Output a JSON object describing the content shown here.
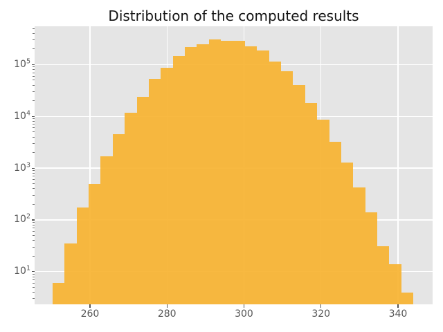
{
  "title": "Distribution of the computed results",
  "colors": {
    "figure_bg": "#ffffff",
    "plot_bg": "#e5e5e5",
    "grid": "#ffffff",
    "bar": "#f7b12c",
    "bar_alpha": 0.9,
    "tick_color": "#555555",
    "tick_label_color": "#555555",
    "title_color": "#141414"
  },
  "chart_data": {
    "type": "bar",
    "subtype": "histogram",
    "title": "Distribution of the computed results",
    "xlabel": "",
    "ylabel": "",
    "xscale": "linear",
    "yscale": "log",
    "xlim": [
      245.62,
      348.99
    ],
    "ylim": [
      2.34,
      550000
    ],
    "grid": true,
    "legend": false,
    "x_ticks": [
      260,
      280,
      300,
      320,
      340
    ],
    "y_ticks": [
      {
        "base": "10",
        "exp": "1",
        "value": 10
      },
      {
        "base": "10",
        "exp": "2",
        "value": 100
      },
      {
        "base": "10",
        "exp": "3",
        "value": 1000
      },
      {
        "base": "10",
        "exp": "4",
        "value": 10000
      },
      {
        "base": "10",
        "exp": "5",
        "value": 100000
      }
    ],
    "bin_edges": [
      250.29,
      253.41,
      256.54,
      259.66,
      262.78,
      265.91,
      269.03,
      272.16,
      275.28,
      278.4,
      281.53,
      284.65,
      287.77,
      290.9,
      294.02,
      297.14,
      300.27,
      303.39,
      306.52,
      309.64,
      312.76,
      315.89,
      319.01,
      322.13,
      325.26,
      328.38,
      331.51,
      334.63,
      337.75,
      340.88,
      344.0
    ],
    "counts": [
      6,
      35,
      175,
      490,
      1700,
      4500,
      11900,
      23900,
      52600,
      86000,
      148000,
      217000,
      250000,
      306000,
      291000,
      289000,
      225000,
      185000,
      115000,
      75000,
      40700,
      17900,
      8750,
      3200,
      1290,
      425,
      142,
      31,
      14,
      4
    ]
  }
}
